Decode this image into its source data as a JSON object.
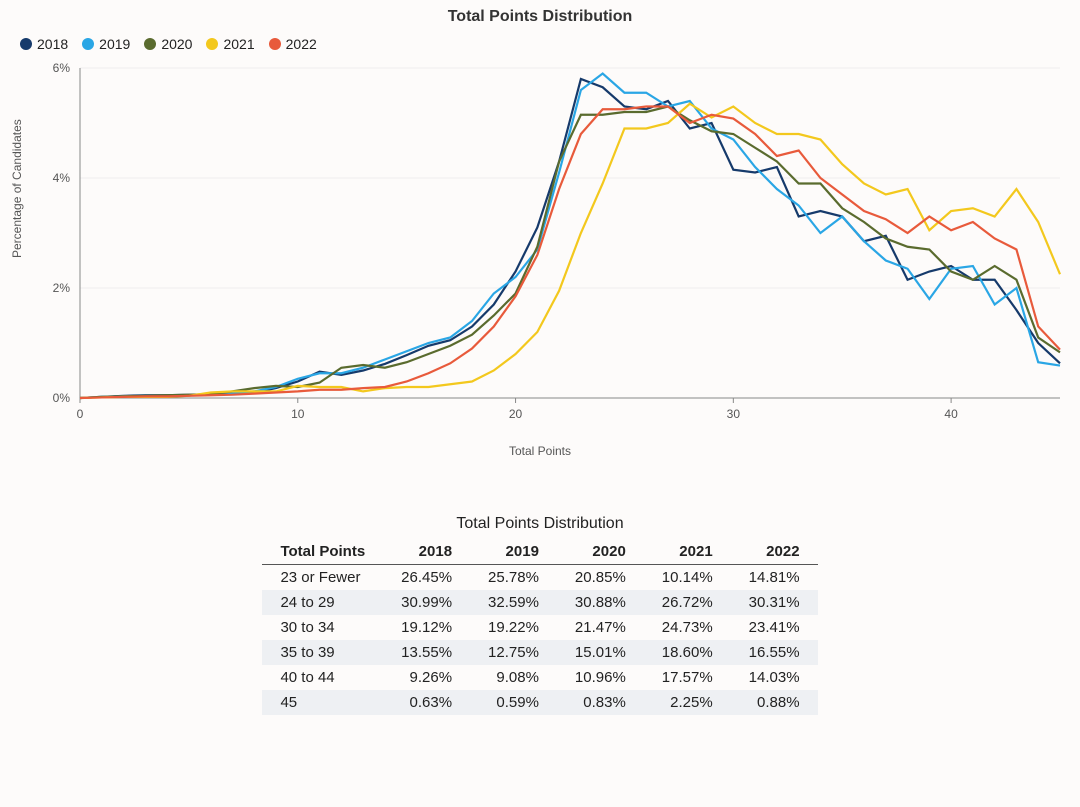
{
  "chart": {
    "type": "line",
    "title": "Total Points Distribution",
    "xlabel": "Total Points",
    "ylabel": "Percentage of Candidates",
    "xlim": [
      0,
      45
    ],
    "ylim": [
      0,
      6
    ],
    "xticks": [
      0,
      10,
      20,
      30,
      40
    ],
    "yticks": [
      0,
      2,
      4,
      6
    ],
    "ytick_suffix": "%",
    "background_color": "#fdfbfa",
    "grid_color": "#eeeeee",
    "axis_color": "#888888",
    "label_fontsize": 12,
    "title_fontsize": 16,
    "line_width": 2.2,
    "x": [
      0,
      1,
      2,
      3,
      4,
      5,
      6,
      7,
      8,
      9,
      10,
      11,
      12,
      13,
      14,
      15,
      16,
      17,
      18,
      19,
      20,
      21,
      22,
      23,
      24,
      25,
      26,
      27,
      28,
      29,
      30,
      31,
      32,
      33,
      34,
      35,
      36,
      37,
      38,
      39,
      40,
      41,
      42,
      43,
      44,
      45
    ],
    "series": [
      {
        "name": "2018",
        "color": "#163a6b",
        "values": [
          0.0,
          0.02,
          0.04,
          0.05,
          0.05,
          0.06,
          0.06,
          0.08,
          0.1,
          0.18,
          0.3,
          0.48,
          0.42,
          0.5,
          0.62,
          0.78,
          0.95,
          1.05,
          1.3,
          1.7,
          2.3,
          3.1,
          4.3,
          5.8,
          5.65,
          5.3,
          5.25,
          5.4,
          4.9,
          5.0,
          4.15,
          4.1,
          4.2,
          3.3,
          3.4,
          3.3,
          2.85,
          2.95,
          2.15,
          2.3,
          2.4,
          2.15,
          2.15,
          1.6,
          1.0,
          0.63
        ]
      },
      {
        "name": "2019",
        "color": "#2aa6e5",
        "values": [
          0.0,
          0.02,
          0.03,
          0.04,
          0.04,
          0.05,
          0.06,
          0.08,
          0.12,
          0.2,
          0.35,
          0.45,
          0.45,
          0.55,
          0.7,
          0.85,
          1.0,
          1.1,
          1.4,
          1.9,
          2.2,
          2.7,
          4.1,
          5.6,
          5.9,
          5.55,
          5.55,
          5.3,
          5.4,
          4.9,
          4.7,
          4.2,
          3.8,
          3.5,
          3.0,
          3.3,
          2.85,
          2.5,
          2.35,
          1.8,
          2.35,
          2.4,
          1.7,
          2.0,
          0.65,
          0.59
        ]
      },
      {
        "name": "2020",
        "color": "#5a6b2e",
        "values": [
          0.0,
          0.02,
          0.03,
          0.04,
          0.05,
          0.06,
          0.07,
          0.12,
          0.18,
          0.22,
          0.2,
          0.28,
          0.55,
          0.6,
          0.55,
          0.65,
          0.8,
          0.95,
          1.15,
          1.5,
          1.9,
          2.75,
          4.3,
          5.15,
          5.15,
          5.2,
          5.2,
          5.3,
          5.05,
          4.85,
          4.8,
          4.55,
          4.3,
          3.9,
          3.9,
          3.45,
          3.2,
          2.9,
          2.75,
          2.7,
          2.3,
          2.15,
          2.4,
          2.15,
          1.1,
          0.83
        ]
      },
      {
        "name": "2021",
        "color": "#f3c81d",
        "values": [
          0.0,
          0.01,
          0.02,
          0.02,
          0.02,
          0.04,
          0.1,
          0.12,
          0.12,
          0.12,
          0.22,
          0.2,
          0.2,
          0.12,
          0.18,
          0.2,
          0.2,
          0.25,
          0.3,
          0.5,
          0.8,
          1.2,
          1.95,
          3.0,
          3.9,
          4.9,
          4.9,
          5.0,
          5.35,
          5.1,
          5.3,
          5.0,
          4.8,
          4.8,
          4.7,
          4.25,
          3.9,
          3.7,
          3.8,
          3.05,
          3.4,
          3.45,
          3.3,
          3.8,
          3.2,
          2.25
        ]
      },
      {
        "name": "2022",
        "color": "#e85a3b",
        "values": [
          0.0,
          0.01,
          0.02,
          0.03,
          0.03,
          0.04,
          0.05,
          0.06,
          0.08,
          0.1,
          0.12,
          0.15,
          0.15,
          0.18,
          0.2,
          0.3,
          0.45,
          0.63,
          0.9,
          1.3,
          1.85,
          2.6,
          3.8,
          4.8,
          5.25,
          5.25,
          5.3,
          5.3,
          5.0,
          5.15,
          5.08,
          4.8,
          4.4,
          4.5,
          4.0,
          3.7,
          3.4,
          3.25,
          3.0,
          3.3,
          3.05,
          3.2,
          2.9,
          2.7,
          1.3,
          0.88
        ]
      }
    ]
  },
  "table": {
    "title": "Total Points Distribution",
    "columns": [
      "Total Points",
      "2018",
      "2019",
      "2020",
      "2021",
      "2022"
    ],
    "rows": [
      [
        "23 or Fewer",
        "26.45%",
        "25.78%",
        "20.85%",
        "10.14%",
        "14.81%"
      ],
      [
        "24 to 29",
        "30.99%",
        "32.59%",
        "30.88%",
        "26.72%",
        "30.31%"
      ],
      [
        "30 to 34",
        "19.12%",
        "19.22%",
        "21.47%",
        "24.73%",
        "23.41%"
      ],
      [
        "35 to 39",
        "13.55%",
        "12.75%",
        "15.01%",
        "18.60%",
        "16.55%"
      ],
      [
        "40 to 44",
        "9.26%",
        "9.08%",
        "10.96%",
        "17.57%",
        "14.03%"
      ],
      [
        "45",
        "0.63%",
        "0.59%",
        "0.83%",
        "2.25%",
        "0.88%"
      ]
    ],
    "header_border_color": "#555555",
    "row_alt_bg": "#eef0f3",
    "fontsize": 15
  }
}
